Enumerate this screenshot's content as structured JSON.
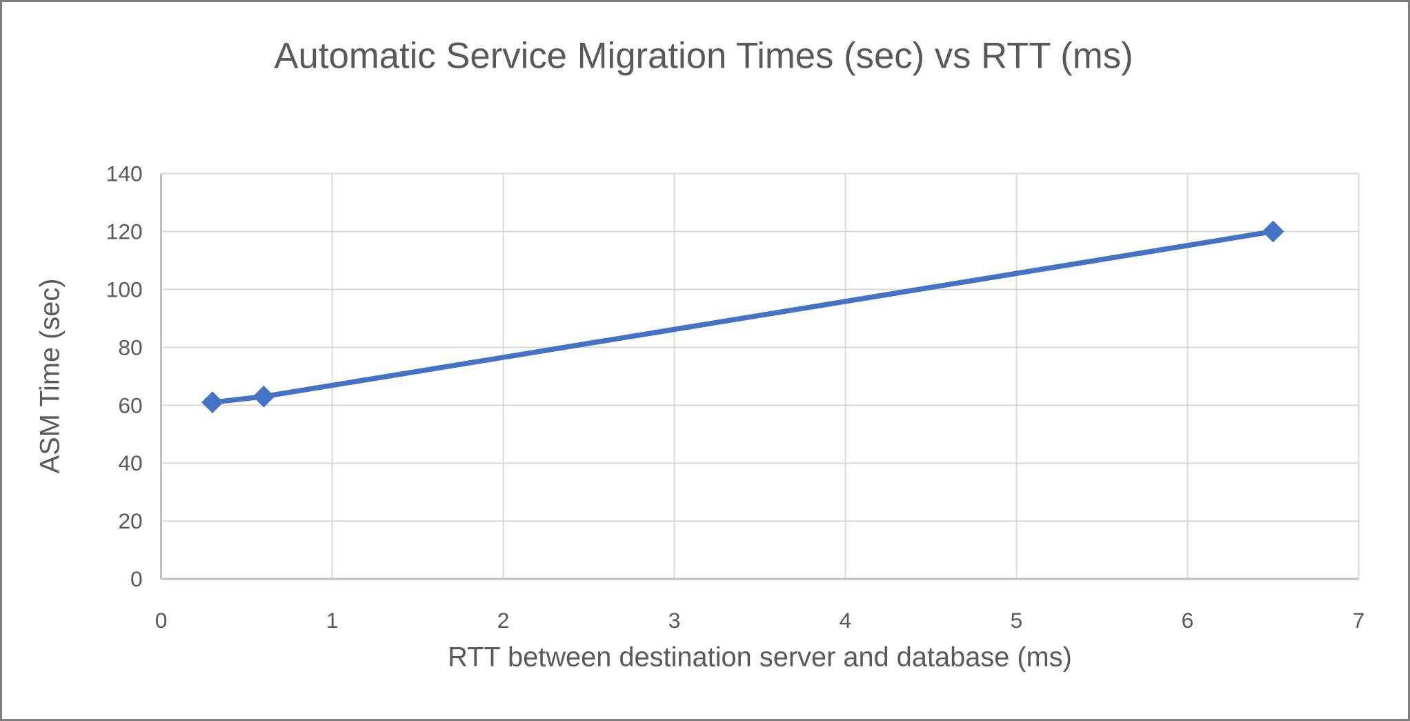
{
  "window": {
    "background_color": "#FFFFFF",
    "border_color": "#7F7F7F"
  },
  "chart_data": {
    "type": "line",
    "title": "Automatic Service Migration Times (sec) vs RTT (ms)",
    "xlabel": "RTT between destination server and database (ms)",
    "ylabel": "ASM Time (sec)",
    "xlim": [
      0,
      7
    ],
    "ylim": [
      0,
      140
    ],
    "xticks": [
      0,
      1,
      2,
      3,
      4,
      5,
      6,
      7
    ],
    "yticks": [
      0,
      20,
      40,
      60,
      80,
      100,
      120,
      140
    ],
    "grid": true,
    "legend": false,
    "series": [
      {
        "marker": "diamond",
        "color": "#4472C4",
        "points": [
          {
            "x": 0.3,
            "y": 61
          },
          {
            "x": 0.6,
            "y": 63
          },
          {
            "x": 6.5,
            "y": 120
          }
        ]
      }
    ],
    "styles": {
      "gridline_color": "#D9D9D9",
      "axis_line_color": "#BFBFBF",
      "text_color": "#595959",
      "title_color": "#595959",
      "line_width": 7.5,
      "marker_half_size": 16
    }
  }
}
